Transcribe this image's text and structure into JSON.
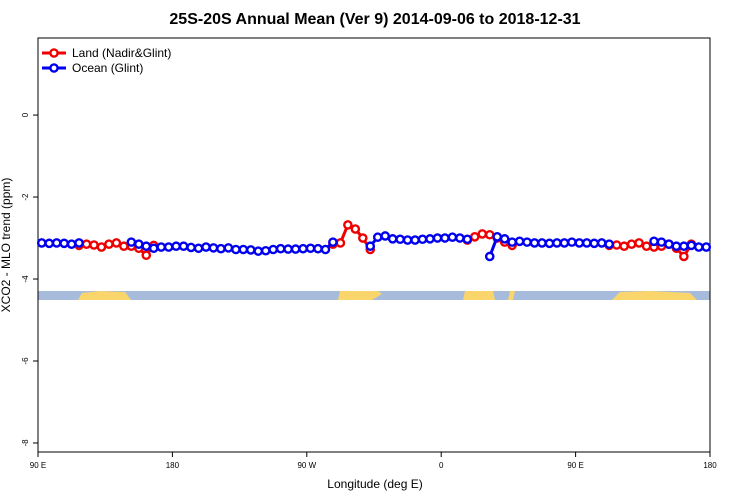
{
  "chart_data": {
    "type": "line",
    "title": "25S-20S Annual Mean (Ver 9)   2014-09-06 to 2018-12-31",
    "xlabel": "Longitude (deg E)",
    "ylabel": "XCO2 - MLO trend (ppm)",
    "legend": "top-left",
    "xlim": [
      90,
      540
    ],
    "xticks": [
      {
        "value": 90,
        "label": "90 E"
      },
      180,
      {
        "value": 270,
        "label": "90 W"
      },
      {
        "value": 360,
        "label": "0"
      },
      {
        "value": 450,
        "label": "90 E"
      },
      {
        "value": 540,
        "label": "180"
      }
    ],
    "ylim": [
      -8.22,
      1.88
    ],
    "yticks": [
      0,
      -2,
      -4,
      -6,
      -8
    ],
    "x": [
      92.5,
      97.5,
      102.5,
      107.5,
      112.5,
      117.5,
      122.5,
      127.5,
      132.5,
      137.5,
      142.5,
      147.5,
      152.5,
      157.5,
      162.5,
      167.5,
      172.5,
      177.5,
      182.5,
      187.5,
      192.5,
      197.5,
      202.5,
      207.5,
      212.5,
      217.5,
      222.5,
      227.5,
      232.5,
      237.5,
      242.5,
      247.5,
      252.5,
      257.5,
      262.5,
      267.5,
      272.5,
      277.5,
      282.5,
      287.5,
      292.5,
      297.5,
      302.5,
      307.5,
      312.5,
      317.5,
      322.5,
      327.5,
      332.5,
      337.5,
      342.5,
      347.5,
      352.5,
      357.5,
      362.5,
      367.5,
      372.5,
      377.5,
      382.5,
      387.5,
      392.5,
      397.5,
      402.5,
      407.5,
      412.5,
      417.5,
      422.5,
      427.5,
      432.5,
      437.5,
      442.5,
      447.5,
      452.5,
      457.5,
      462.5,
      467.5,
      472.5,
      477.5,
      482.5,
      487.5,
      492.5,
      497.5,
      502.5,
      507.5,
      512.5,
      517.5,
      522.5,
      527.5,
      532.5,
      537.5
    ],
    "series": [
      {
        "name": "Land (Nadir&Glint)",
        "color": "#ee0000",
        "values": [
          null,
          null,
          null,
          null,
          null,
          -3.18,
          -3.15,
          -3.17,
          -3.22,
          -3.15,
          -3.12,
          -3.2,
          -3.2,
          -3.25,
          -3.42,
          -3.18,
          null,
          null,
          null,
          null,
          null,
          null,
          null,
          null,
          null,
          null,
          null,
          null,
          null,
          null,
          null,
          null,
          null,
          null,
          null,
          null,
          null,
          null,
          null,
          -3.15,
          -3.12,
          -2.68,
          -2.78,
          -3.0,
          -3.28,
          null,
          null,
          null,
          null,
          null,
          null,
          null,
          null,
          null,
          null,
          null,
          null,
          -3.05,
          -2.97,
          -2.9,
          -2.92,
          -3.0,
          -3.1,
          -3.18,
          null,
          null,
          null,
          null,
          null,
          null,
          null,
          null,
          null,
          null,
          null,
          null,
          -3.18,
          -3.17,
          -3.2,
          -3.15,
          -3.12,
          -3.2,
          -3.22,
          -3.2,
          -3.15,
          -3.25,
          -3.45,
          -3.15,
          null,
          null
        ]
      },
      {
        "name": "Ocean (Glint)",
        "color": "#0000ee",
        "values": [
          -3.12,
          -3.13,
          -3.12,
          -3.13,
          -3.15,
          -3.12,
          null,
          null,
          null,
          null,
          null,
          null,
          -3.1,
          -3.15,
          -3.2,
          -3.25,
          -3.22,
          -3.22,
          -3.2,
          -3.2,
          -3.23,
          -3.25,
          -3.22,
          -3.24,
          -3.26,
          -3.24,
          -3.28,
          -3.28,
          -3.29,
          -3.32,
          -3.31,
          -3.28,
          -3.26,
          -3.27,
          -3.27,
          -3.26,
          -3.25,
          -3.26,
          -3.28,
          -3.1,
          null,
          null,
          null,
          null,
          -3.2,
          -2.98,
          -2.95,
          -3.02,
          -3.03,
          -3.05,
          -3.05,
          -3.03,
          -3.02,
          -3.0,
          -3.0,
          -2.98,
          -3.0,
          -3.03,
          null,
          null,
          -3.45,
          -2.97,
          -3.02,
          -3.1,
          -3.08,
          -3.1,
          -3.12,
          -3.12,
          -3.13,
          -3.12,
          -3.12,
          -3.1,
          -3.12,
          -3.12,
          -3.13,
          -3.12,
          -3.15,
          null,
          null,
          null,
          null,
          null,
          -3.08,
          -3.1,
          -3.15,
          -3.2,
          -3.2,
          -3.18,
          -3.22,
          -3.22
        ]
      }
    ]
  }
}
